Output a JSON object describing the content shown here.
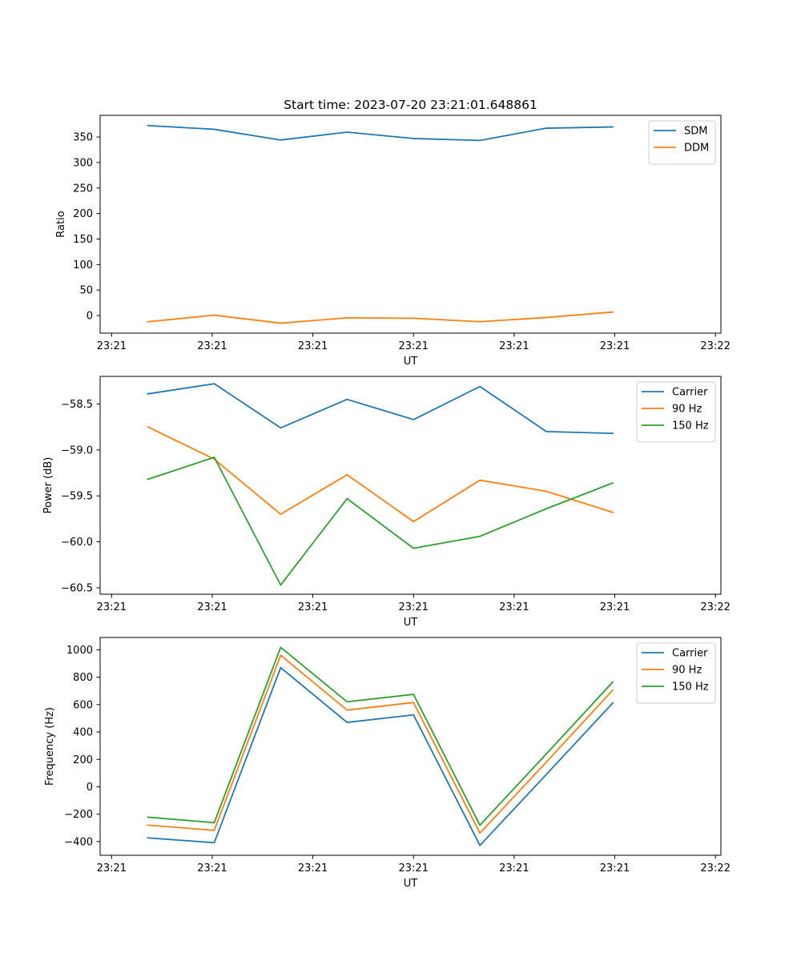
{
  "figure_title": "Start time: 2023-07-20 23:21:01.648861",
  "colors": {
    "blue": "#1f77b4",
    "orange": "#ff7f0e",
    "green": "#2ca02c"
  },
  "chart_data": [
    {
      "type": "line",
      "title": "Start time: 2023-07-20 23:21:01.648861",
      "xlabel": "UT",
      "ylabel": "Ratio",
      "x": [
        1,
        2,
        3,
        4,
        5,
        6,
        7,
        8
      ],
      "xlim": [
        0.2818,
        9.6282
      ],
      "x_ticks": [
        {
          "value": 0.4545,
          "label": "23:21"
        },
        {
          "value": 1.9697,
          "label": "23:21"
        },
        {
          "value": 3.4848,
          "label": "23:21"
        },
        {
          "value": 5.0,
          "label": "23:21"
        },
        {
          "value": 6.5152,
          "label": "23:21"
        },
        {
          "value": 8.0303,
          "label": "23:21"
        },
        {
          "value": 9.5455,
          "label": "23:22"
        }
      ],
      "ylim": [
        -34.5,
        392.5
      ],
      "y_ticks": [
        0,
        50,
        100,
        150,
        200,
        250,
        300,
        350
      ],
      "legend": "top-right",
      "series": [
        {
          "name": "SDM",
          "color": "#1f77b4",
          "values": [
            372.5,
            365.1,
            344.1,
            359.6,
            347.1,
            343.2,
            367.3,
            369.7
          ]
        },
        {
          "name": "DDM",
          "color": "#ff7f0e",
          "values": [
            -12.1,
            0.7,
            -15.0,
            -4.5,
            -5.3,
            -12.1,
            -3.8,
            6.9
          ]
        }
      ]
    },
    {
      "type": "line",
      "xlabel": "UT",
      "ylabel": "Power (dB)",
      "x": [
        1,
        2,
        3,
        4,
        5,
        6,
        7,
        8
      ],
      "xlim": [
        0.2818,
        9.6282
      ],
      "x_ticks": [
        {
          "value": 0.4545,
          "label": "23:21"
        },
        {
          "value": 1.9697,
          "label": "23:21"
        },
        {
          "value": 3.4848,
          "label": "23:21"
        },
        {
          "value": 5.0,
          "label": "23:21"
        },
        {
          "value": 6.5152,
          "label": "23:21"
        },
        {
          "value": 8.0303,
          "label": "23:21"
        },
        {
          "value": 9.5455,
          "label": "23:22"
        }
      ],
      "ylim": [
        -60.57,
        -58.2
      ],
      "y_ticks": [
        {
          "value": -60.5,
          "label": "−60.5"
        },
        {
          "value": -60.0,
          "label": "−60.0"
        },
        {
          "value": -59.5,
          "label": "−59.5"
        },
        {
          "value": -59.0,
          "label": "−59.0"
        },
        {
          "value": -58.5,
          "label": "−58.5"
        }
      ],
      "legend": "top-right",
      "series": [
        {
          "name": "Carrier",
          "color": "#1f77b4",
          "values": [
            -58.39,
            -58.28,
            -58.76,
            -58.45,
            -58.67,
            -58.31,
            -58.8,
            -58.82
          ]
        },
        {
          "name": "90 Hz",
          "color": "#ff7f0e",
          "values": [
            -58.75,
            -59.1,
            -59.7,
            -59.27,
            -59.78,
            -59.33,
            -59.45,
            -59.68
          ]
        },
        {
          "name": "150 Hz",
          "color": "#2ca02c",
          "values": [
            -59.32,
            -59.08,
            -60.47,
            -59.53,
            -60.07,
            -59.94,
            -59.64,
            -59.36
          ]
        }
      ]
    },
    {
      "type": "line",
      "xlabel": "UT",
      "ylabel": "Frequency (Hz)",
      "x": [
        1,
        2,
        3,
        4,
        5,
        6,
        7,
        8
      ],
      "xlim": [
        0.2818,
        9.6282
      ],
      "x_ticks": [
        {
          "value": 0.4545,
          "label": "23:21"
        },
        {
          "value": 1.9697,
          "label": "23:21"
        },
        {
          "value": 3.4848,
          "label": "23:21"
        },
        {
          "value": 5.0,
          "label": "23:21"
        },
        {
          "value": 6.5152,
          "label": "23:21"
        },
        {
          "value": 8.0303,
          "label": "23:21"
        },
        {
          "value": 9.5455,
          "label": "23:22"
        }
      ],
      "ylim": [
        -500,
        1090
      ],
      "y_ticks": [
        {
          "value": -400,
          "label": "−400"
        },
        {
          "value": -200,
          "label": "−200"
        },
        {
          "value": 0,
          "label": "0"
        },
        {
          "value": 200,
          "label": "200"
        },
        {
          "value": 400,
          "label": "400"
        },
        {
          "value": 600,
          "label": "600"
        },
        {
          "value": 800,
          "label": "800"
        },
        {
          "value": 1000,
          "label": "1000"
        }
      ],
      "legend": "top-right",
      "series": [
        {
          "name": "Carrier",
          "color": "#1f77b4",
          "values": [
            -373,
            -408,
            870,
            470,
            525,
            -428,
            90,
            612
          ]
        },
        {
          "name": "90 Hz",
          "color": "#ff7f0e",
          "values": [
            -280,
            -318,
            960,
            560,
            615,
            -338,
            180,
            706
          ]
        },
        {
          "name": "150 Hz",
          "color": "#2ca02c",
          "values": [
            -222,
            -262,
            1018,
            620,
            675,
            -280,
            240,
            765
          ]
        }
      ]
    }
  ]
}
